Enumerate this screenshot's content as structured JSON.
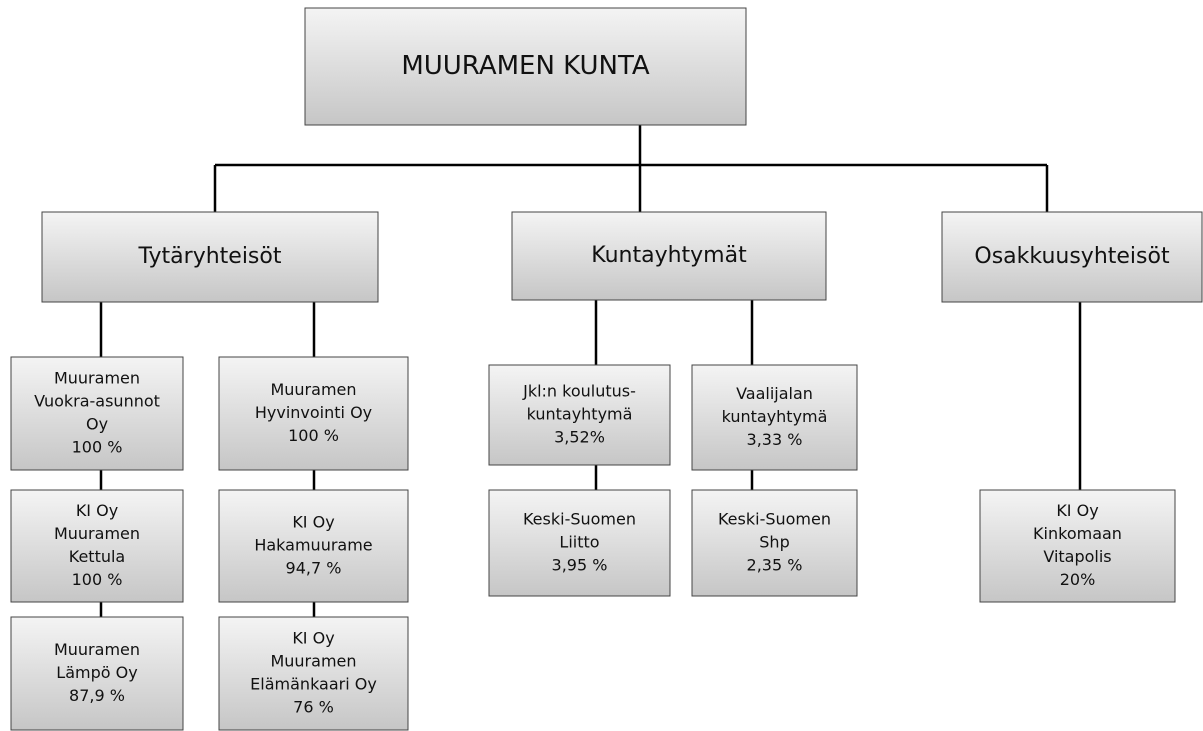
{
  "nodes": [
    {
      "lines": [
        "MUURAMEN KUNTA"
      ]
    },
    {
      "lines": [
        "Tytäryhteisöt"
      ]
    },
    {
      "lines": [
        "Kuntayhtymät"
      ]
    },
    {
      "lines": [
        "Osakkuusyhteisöt"
      ]
    },
    {
      "lines": [
        "Muuramen",
        "Vuokra-asunnot",
        "Oy",
        "100 %"
      ]
    },
    {
      "lines": [
        "KI Oy",
        "Muuramen",
        "Kettula",
        "100 %"
      ]
    },
    {
      "lines": [
        "Muuramen",
        "Lämpö Oy",
        "87,9 %"
      ]
    },
    {
      "lines": [
        "Muuramen",
        "Hyvinvointi Oy",
        "100 %"
      ]
    },
    {
      "lines": [
        "KI Oy",
        "Hakamuurame",
        "94,7 %"
      ]
    },
    {
      "lines": [
        "KI Oy",
        "Muuramen",
        "Elämänkaari Oy",
        "76 %"
      ]
    },
    {
      "lines": [
        "Jkl:n koulutus-",
        "kuntayhtymä",
        "3,52%"
      ]
    },
    {
      "lines": [
        "Keski-Suomen",
        "Liitto",
        "3,95 %"
      ]
    },
    {
      "lines": [
        "Vaalijalan",
        "kuntayhtymä",
        "3,33 %"
      ]
    },
    {
      "lines": [
        "Keski-Suomen",
        "Shp",
        "2,35 %"
      ]
    },
    {
      "lines": [
        "KI Oy",
        "Kinkomaan",
        "Vitapolis",
        "20%"
      ]
    }
  ]
}
